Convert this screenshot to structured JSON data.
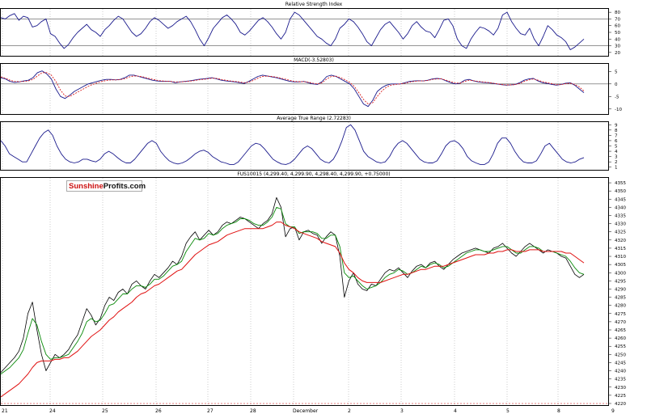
{
  "logo": {
    "part1": "Sunshine",
    "part2": "Profits.com"
  },
  "colors": {
    "indicator_line": "#1a1a8c",
    "macd_signal": "#dd1f1f",
    "price": "#000000",
    "ma_fast": "#0a8a0a",
    "ma_slow": "#e01010",
    "gridline": "#999999"
  },
  "chart_data": [
    {
      "type": "line",
      "title": "Relative Strength Index",
      "yticks": [
        80,
        70,
        60,
        50,
        40,
        30,
        20
      ],
      "ylim": [
        15,
        85
      ],
      "reference_lines": [
        70,
        30
      ],
      "series": [
        {
          "values": [
            72,
            70,
            75,
            78,
            68,
            74,
            72,
            58,
            60,
            66,
            70,
            48,
            44,
            34,
            26,
            32,
            42,
            50,
            56,
            62,
            54,
            50,
            44,
            54,
            60,
            68,
            74,
            70,
            60,
            50,
            44,
            48,
            56,
            66,
            72,
            68,
            62,
            56,
            60,
            66,
            70,
            74,
            66,
            54,
            40,
            30,
            42,
            56,
            64,
            72,
            76,
            70,
            62,
            50,
            46,
            52,
            60,
            68,
            72,
            66,
            58,
            48,
            40,
            50,
            70,
            80,
            76,
            68,
            60,
            52,
            44,
            40,
            34,
            30,
            40,
            56,
            62,
            70,
            66,
            58,
            48,
            36,
            30,
            42,
            54,
            62,
            66,
            58,
            50,
            40,
            48,
            60,
            66,
            58,
            52,
            50,
            42,
            54,
            68,
            70,
            60,
            40,
            30,
            26,
            40,
            50,
            58,
            56,
            52,
            46,
            56,
            76,
            80,
            66,
            56,
            48,
            46,
            56,
            40,
            30,
            44,
            60,
            54,
            46,
            42,
            36,
            24,
            28,
            34,
            40
          ]
        }
      ]
    },
    {
      "type": "line",
      "title": "MACD(-3.52803)",
      "yticks": [
        5,
        0,
        -5,
        -10
      ],
      "ylim": [
        -12,
        8
      ],
      "reference_lines": [
        0
      ],
      "series": [
        {
          "values": [
            2.5,
            2.0,
            1.0,
            0.6,
            0.8,
            1.2,
            1.5,
            2.5,
            4.5,
            5.2,
            4.0,
            2.0,
            -2.0,
            -5.0,
            -5.8,
            -4.5,
            -3.0,
            -2.0,
            -1.0,
            0.0,
            0.5,
            1.0,
            1.5,
            1.8,
            1.8,
            1.6,
            1.8,
            2.5,
            3.5,
            3.5,
            3.0,
            2.5,
            2.0,
            1.5,
            1.2,
            1.0,
            1.0,
            1.0,
            0.5,
            0.8,
            1.0,
            1.2,
            1.5,
            1.8,
            2.0,
            2.2,
            2.5,
            2.0,
            1.5,
            1.2,
            1.0,
            0.8,
            0.5,
            0.2,
            1.0,
            2.0,
            3.0,
            3.5,
            3.2,
            2.8,
            2.5,
            2.0,
            1.5,
            1.0,
            0.8,
            0.8,
            1.0,
            0.5,
            0.0,
            -0.2,
            1.0,
            3.0,
            3.5,
            3.0,
            2.0,
            1.0,
            0.0,
            -2.0,
            -5.0,
            -8.0,
            -9.0,
            -6.5,
            -3.0,
            -1.5,
            -0.5,
            0.0,
            0.0,
            0.0,
            0.5,
            1.0,
            1.2,
            1.3,
            1.2,
            1.5,
            2.0,
            2.2,
            2.0,
            1.2,
            0.5,
            0.0,
            0.3,
            1.5,
            1.8,
            1.2,
            0.8,
            0.6,
            0.5,
            0.3,
            0.0,
            -0.3,
            -0.5,
            -0.4,
            -0.2,
            0.5,
            1.5,
            2.0,
            2.2,
            1.2,
            0.5,
            0.2,
            -0.2,
            -0.5,
            -0.2,
            0.3,
            0.5,
            -0.5,
            -2.0,
            -3.5
          ]
        },
        {
          "values": [
            2.8,
            2.3,
            1.5,
            1.0,
            0.9,
            1.0,
            1.2,
            1.8,
            3.2,
            4.5,
            4.5,
            3.5,
            1.0,
            -2.5,
            -4.8,
            -5.0,
            -4.0,
            -3.0,
            -2.0,
            -1.0,
            -0.2,
            0.4,
            1.0,
            1.4,
            1.6,
            1.6,
            1.7,
            2.1,
            2.8,
            3.2,
            3.1,
            2.8,
            2.3,
            1.9,
            1.5,
            1.2,
            1.1,
            1.0,
            0.8,
            0.8,
            0.9,
            1.1,
            1.3,
            1.6,
            1.8,
            2.0,
            2.3,
            2.2,
            1.8,
            1.5,
            1.2,
            1.0,
            0.8,
            0.5,
            0.7,
            1.4,
            2.3,
            3.0,
            3.1,
            3.0,
            2.7,
            2.3,
            1.9,
            1.4,
            1.0,
            0.9,
            0.9,
            0.7,
            0.3,
            0.0,
            0.5,
            2.0,
            3.0,
            3.1,
            2.5,
            1.6,
            0.6,
            -1.0,
            -3.5,
            -6.2,
            -8.0,
            -7.5,
            -5.0,
            -2.8,
            -1.3,
            -0.5,
            -0.2,
            0.0,
            0.3,
            0.7,
            1.0,
            1.2,
            1.2,
            1.4,
            1.8,
            2.0,
            2.0,
            1.5,
            0.9,
            0.4,
            0.3,
            1.0,
            1.5,
            1.3,
            1.0,
            0.8,
            0.6,
            0.4,
            0.1,
            -0.2,
            -0.4,
            -0.4,
            -0.3,
            0.2,
            1.0,
            1.6,
            2.0,
            1.5,
            0.9,
            0.5,
            0.1,
            -0.3,
            -0.3,
            0.1,
            0.3,
            -0.2,
            -1.2,
            -2.8
          ]
        }
      ]
    },
    {
      "type": "line",
      "title": "Average True Range (2.72283)",
      "yticks": [
        9,
        8,
        7,
        6,
        5,
        4,
        3,
        2,
        1
      ],
      "ylim": [
        0.5,
        9.5
      ],
      "series": [
        {
          "values": [
            6.0,
            5.0,
            3.5,
            3.0,
            2.5,
            2.0,
            2.0,
            3.5,
            5.0,
            6.5,
            7.5,
            8.0,
            7.0,
            5.0,
            3.5,
            2.5,
            2.0,
            1.8,
            2.0,
            2.5,
            2.5,
            2.2,
            2.0,
            2.5,
            3.5,
            4.0,
            3.5,
            2.8,
            2.2,
            1.8,
            1.8,
            2.5,
            3.5,
            4.5,
            5.5,
            6.0,
            5.5,
            4.0,
            3.0,
            2.2,
            1.8,
            1.6,
            1.8,
            2.2,
            2.8,
            3.5,
            4.0,
            4.2,
            3.8,
            3.0,
            2.5,
            2.0,
            1.8,
            1.5,
            1.5,
            2.0,
            3.0,
            4.0,
            5.0,
            5.5,
            5.3,
            4.5,
            3.5,
            2.5,
            2.0,
            1.6,
            1.5,
            1.8,
            2.5,
            3.5,
            4.5,
            5.0,
            4.5,
            3.5,
            2.5,
            2.0,
            1.8,
            2.5,
            4.0,
            6.0,
            8.5,
            9.0,
            8.0,
            6.0,
            4.0,
            3.0,
            2.5,
            2.0,
            1.8,
            2.0,
            3.0,
            4.5,
            5.5,
            6.0,
            5.5,
            4.5,
            3.5,
            2.5,
            2.0,
            1.8,
            1.8,
            2.2,
            3.5,
            5.0,
            5.8,
            6.0,
            5.5,
            4.5,
            3.0,
            2.2,
            1.8,
            1.5,
            1.5,
            2.0,
            3.5,
            5.5,
            6.5,
            6.5,
            5.5,
            4.0,
            2.8,
            2.0,
            1.8,
            1.8,
            2.2,
            3.5,
            5.0,
            5.5,
            4.5,
            3.5,
            2.5,
            2.0,
            1.8,
            2.0,
            2.5,
            2.8
          ]
        }
      ]
    },
    {
      "type": "line",
      "title": "FUS10015 (4,299.40, 4,299.90, 4,298.40, 4,299.90, +0.75000)",
      "yticks": [
        4355,
        4350,
        4345,
        4340,
        4335,
        4330,
        4325,
        4320,
        4315,
        4310,
        4305,
        4300,
        4295,
        4290,
        4285,
        4280,
        4275,
        4270,
        4265,
        4260,
        4255,
        4250,
        4245,
        4240,
        4235,
        4230,
        4225,
        4220
      ],
      "ylim": [
        4219,
        4358
      ],
      "xticks": [
        "21",
        "24",
        "25",
        "26",
        "27",
        "28",
        "December",
        "2",
        "3",
        "4",
        "5",
        "8",
        "9"
      ],
      "series": [
        {
          "values": [
            4239,
            4242,
            4245,
            4248,
            4252,
            4260,
            4275,
            4282,
            4265,
            4250,
            4240,
            4245,
            4250,
            4248,
            4250,
            4253,
            4258,
            4262,
            4270,
            4278,
            4274,
            4268,
            4272,
            4280,
            4285,
            4283,
            4288,
            4290,
            4287,
            4293,
            4295,
            4292,
            4290,
            4295,
            4299,
            4297,
            4300,
            4303,
            4307,
            4305,
            4310,
            4318,
            4322,
            4325,
            4320,
            4323,
            4326,
            4323,
            4325,
            4329,
            4331,
            4330,
            4332,
            4334,
            4333,
            4331,
            4329,
            4327,
            4330,
            4332,
            4336,
            4346,
            4340,
            4322,
            4327,
            4328,
            4320,
            4325,
            4326,
            4324,
            4323,
            4318,
            4322,
            4325,
            4323,
            4310,
            4285,
            4295,
            4300,
            4293,
            4290,
            4289,
            4293,
            4292,
            4296,
            4300,
            4302,
            4301,
            4303,
            4300,
            4297,
            4301,
            4304,
            4305,
            4303,
            4306,
            4307,
            4304,
            4302,
            4305,
            4308,
            4310,
            4312,
            4313,
            4314,
            4315,
            4314,
            4313,
            4312,
            4315,
            4316,
            4318,
            4315,
            4312,
            4310,
            4313,
            4316,
            4318,
            4316,
            4314,
            4312,
            4314,
            4313,
            4312,
            4310,
            4309,
            4304,
            4299,
            4297,
            4299
          ]
        },
        {
          "values": [
            4238,
            4240,
            4242,
            4245,
            4248,
            4253,
            4263,
            4272,
            4268,
            4258,
            4250,
            4247,
            4248,
            4248,
            4249,
            4250,
            4254,
            4258,
            4263,
            4270,
            4272,
            4270,
            4271,
            4275,
            4280,
            4281,
            4284,
            4287,
            4287,
            4290,
            4292,
            4292,
            4291,
            4293,
            4296,
            4296,
            4298,
            4301,
            4304,
            4305,
            4307,
            4313,
            4317,
            4321,
            4320,
            4321,
            4324,
            4323,
            4324,
            4327,
            4329,
            4330,
            4331,
            4333,
            4333,
            4332,
            4330,
            4329,
            4329,
            4331,
            4334,
            4340,
            4339,
            4330,
            4328,
            4328,
            4324,
            4325,
            4325,
            4325,
            4324,
            4321,
            4321,
            4323,
            4323,
            4316,
            4300,
            4297,
            4298,
            4295,
            4292,
            4290,
            4291,
            4292,
            4294,
            4297,
            4299,
            4300,
            4302,
            4301,
            4299,
            4300,
            4302,
            4304,
            4303,
            4305,
            4306,
            4305,
            4303,
            4304,
            4306,
            4308,
            4310,
            4312,
            4313,
            4314,
            4314,
            4313,
            4313,
            4314,
            4315,
            4316,
            4316,
            4314,
            4312,
            4312,
            4314,
            4316,
            4316,
            4315,
            4313,
            4313,
            4313,
            4312,
            4311,
            4310,
            4307,
            4303,
            4300,
            4299
          ]
        },
        {
          "values": [
            4224,
            4226,
            4228,
            4230,
            4232,
            4235,
            4238,
            4242,
            4245,
            4246,
            4246,
            4246,
            4247,
            4247,
            4248,
            4248,
            4250,
            4252,
            4255,
            4258,
            4261,
            4263,
            4265,
            4268,
            4271,
            4273,
            4276,
            4278,
            4280,
            4282,
            4285,
            4287,
            4288,
            4290,
            4292,
            4293,
            4295,
            4297,
            4299,
            4301,
            4302,
            4305,
            4308,
            4311,
            4313,
            4315,
            4317,
            4318,
            4319,
            4321,
            4323,
            4324,
            4325,
            4326,
            4327,
            4327,
            4327,
            4327,
            4327,
            4328,
            4329,
            4331,
            4331,
            4329,
            4328,
            4327,
            4325,
            4324,
            4323,
            4322,
            4321,
            4319,
            4318,
            4317,
            4316,
            4312,
            4306,
            4302,
            4300,
            4297,
            4295,
            4294,
            4294,
            4294,
            4294,
            4295,
            4296,
            4297,
            4298,
            4299,
            4299,
            4300,
            4301,
            4302,
            4302,
            4303,
            4304,
            4304,
            4304,
            4305,
            4306,
            4307,
            4308,
            4309,
            4310,
            4311,
            4311,
            4311,
            4312,
            4312,
            4313,
            4313,
            4314,
            4314,
            4313,
            4313,
            4313,
            4314,
            4314,
            4314,
            4313,
            4313,
            4313,
            4313,
            4313,
            4312,
            4312,
            4310,
            4308,
            4306
          ]
        }
      ]
    }
  ]
}
